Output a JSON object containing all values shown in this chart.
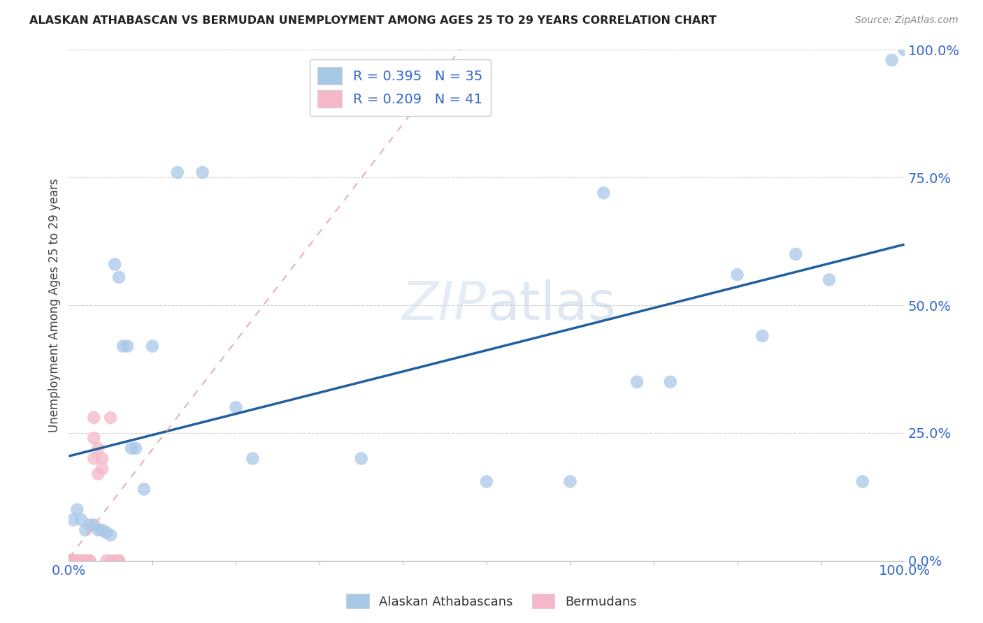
{
  "title": "ALASKAN ATHABASCAN VS BERMUDAN UNEMPLOYMENT AMONG AGES 25 TO 29 YEARS CORRELATION CHART",
  "source": "Source: ZipAtlas.com",
  "ylabel": "Unemployment Among Ages 25 to 29 years",
  "r_athabascan": 0.395,
  "n_athabascan": 35,
  "r_bermudan": 0.209,
  "n_bermudan": 41,
  "legend_labels": [
    "Alaskan Athabascans",
    "Bermudans"
  ],
  "color_athabascan": "#a8c8e8",
  "color_bermudan": "#f4b8c8",
  "line_color_athabascan": "#2060a0",
  "line_color_bermudan": "#e8b0bc",
  "background_color": "#ffffff",
  "athabascan_x": [
    0.005,
    0.01,
    0.015,
    0.02,
    0.025,
    0.03,
    0.035,
    0.04,
    0.045,
    0.05,
    0.055,
    0.06,
    0.065,
    0.07,
    0.075,
    0.08,
    0.09,
    0.1,
    0.13,
    0.16,
    0.2,
    0.22,
    0.35,
    0.5,
    0.6,
    0.64,
    0.68,
    0.72,
    0.8,
    0.83,
    0.87,
    0.91,
    0.95,
    0.985,
    1.0
  ],
  "athabascan_y": [
    0.08,
    0.1,
    0.08,
    0.06,
    0.07,
    0.07,
    0.06,
    0.06,
    0.055,
    0.05,
    0.58,
    0.555,
    0.42,
    0.42,
    0.22,
    0.22,
    0.14,
    0.42,
    0.76,
    0.76,
    0.3,
    0.2,
    0.2,
    0.155,
    0.155,
    0.72,
    0.35,
    0.35,
    0.56,
    0.44,
    0.6,
    0.55,
    0.155,
    0.98,
    1.0
  ],
  "bermudan_x": [
    0.0,
    0.0,
    0.0,
    0.0,
    0.0,
    0.0,
    0.0,
    0.0,
    0.0,
    0.0,
    0.0,
    0.0,
    0.0,
    0.0,
    0.0,
    0.005,
    0.005,
    0.005,
    0.005,
    0.01,
    0.01,
    0.01,
    0.015,
    0.015,
    0.02,
    0.02,
    0.025,
    0.025,
    0.03,
    0.03,
    0.03,
    0.035,
    0.035,
    0.04,
    0.04,
    0.045,
    0.05,
    0.05,
    0.055,
    0.06,
    0.06
  ],
  "bermudan_y": [
    0.0,
    0.0,
    0.0,
    0.0,
    0.0,
    0.0,
    0.0,
    0.0,
    0.0,
    0.0,
    0.0,
    0.0,
    0.0,
    0.0,
    0.0,
    0.0,
    0.0,
    0.0,
    0.0,
    0.0,
    0.0,
    0.0,
    0.0,
    0.0,
    0.0,
    0.0,
    0.0,
    0.0,
    0.28,
    0.24,
    0.2,
    0.22,
    0.17,
    0.2,
    0.18,
    0.0,
    0.0,
    0.28,
    0.0,
    0.0,
    0.0
  ],
  "xticks": [
    0.0,
    1.0
  ],
  "xticklabels": [
    "0.0%",
    "100.0%"
  ],
  "yticks": [
    0.0,
    0.25,
    0.5,
    0.75,
    1.0
  ],
  "yticklabels": [
    "0.0%",
    "25.0%",
    "50.0%",
    "75.0%",
    "100.0%"
  ]
}
